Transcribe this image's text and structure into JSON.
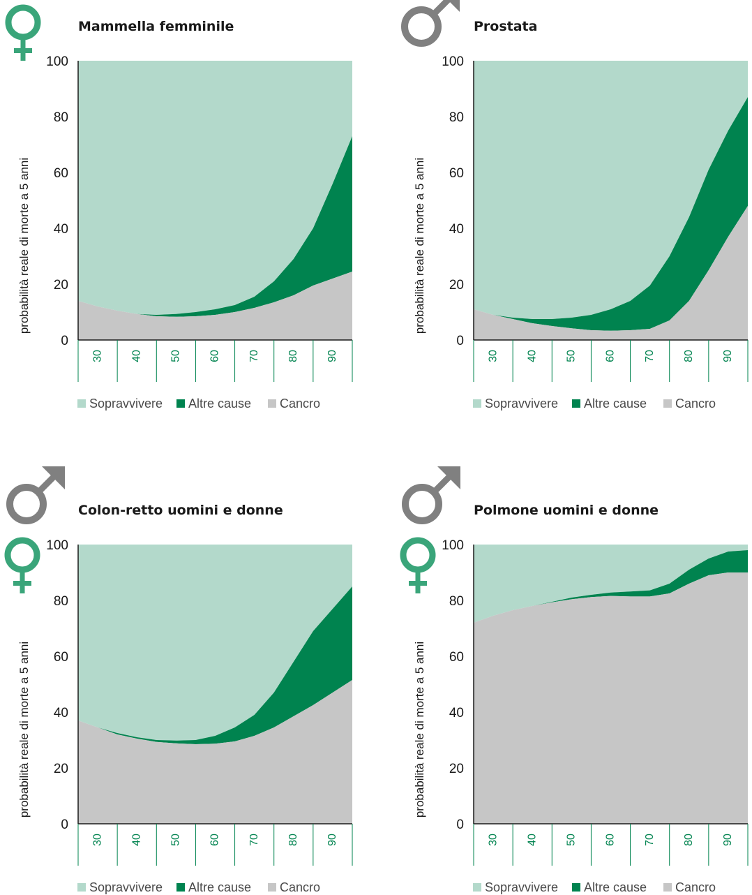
{
  "colors": {
    "survive": "#b3d9cb",
    "other": "#00834f",
    "cancer": "#c6c6c6",
    "female_symbol": "#3aa57a",
    "male_symbol": "#808080",
    "x_tick_text": "#00834f"
  },
  "chart_data": [
    {
      "type": "area",
      "title": "Mammella femminile",
      "symbols": [
        "female-icon"
      ],
      "ylabel": "probabilità  reale di morte a 5 anni",
      "x": [
        25,
        30,
        35,
        40,
        45,
        50,
        55,
        60,
        65,
        70,
        75,
        80,
        85,
        90,
        95
      ],
      "ylim": [
        0,
        100
      ],
      "xlim": [
        25,
        95
      ],
      "yticks": [
        0,
        20,
        40,
        60,
        80,
        100
      ],
      "xticks": [
        30,
        40,
        50,
        60,
        70,
        80,
        90
      ],
      "series": [
        {
          "name": "Cancro",
          "values": [
            14,
            12,
            10.5,
            9.3,
            8.5,
            8.3,
            8.5,
            9,
            10,
            11.5,
            13.5,
            16,
            19.5,
            22,
            24.5
          ]
        },
        {
          "name": "Altre cause",
          "values": [
            14,
            12,
            10.5,
            9.3,
            9,
            9.3,
            10,
            11,
            12.5,
            15.5,
            21,
            29,
            40,
            56,
            73
          ]
        },
        {
          "name": "Sopravvivere",
          "values": [
            100,
            100,
            100,
            100,
            100,
            100,
            100,
            100,
            100,
            100,
            100,
            100,
            100,
            100,
            100
          ]
        }
      ]
    },
    {
      "type": "area",
      "title": "Prostata",
      "symbols": [
        "male-icon"
      ],
      "ylabel": "probabilità  reale di morte a 5 anni",
      "x": [
        25,
        30,
        35,
        40,
        45,
        50,
        55,
        60,
        65,
        70,
        75,
        80,
        85,
        90,
        95
      ],
      "ylim": [
        0,
        100
      ],
      "xlim": [
        25,
        95
      ],
      "yticks": [
        0,
        20,
        40,
        60,
        80,
        100
      ],
      "xticks": [
        30,
        40,
        50,
        60,
        70,
        80,
        90
      ],
      "series": [
        {
          "name": "Cancro",
          "values": [
            11,
            9,
            7.5,
            6,
            5,
            4.2,
            3.5,
            3.3,
            3.5,
            4,
            7,
            14,
            25,
            37,
            48
          ]
        },
        {
          "name": "Altre cause",
          "values": [
            11,
            9,
            8,
            7.5,
            7.5,
            8,
            9,
            11,
            14,
            19.5,
            30,
            44,
            61,
            75,
            87
          ]
        },
        {
          "name": "Sopravvivere",
          "values": [
            100,
            100,
            100,
            100,
            100,
            100,
            100,
            100,
            100,
            100,
            100,
            100,
            100,
            100,
            100
          ]
        }
      ]
    },
    {
      "type": "area",
      "title": "Colon-retto uomini e donne",
      "symbols": [
        "male-icon",
        "female-icon"
      ],
      "ylabel": "probabilità  reale di morte a 5 anni",
      "x": [
        25,
        30,
        35,
        40,
        45,
        50,
        55,
        60,
        65,
        70,
        75,
        80,
        85,
        90,
        95
      ],
      "ylim": [
        0,
        100
      ],
      "xlim": [
        25,
        95
      ],
      "yticks": [
        0,
        20,
        40,
        60,
        80,
        100
      ],
      "xticks": [
        30,
        40,
        50,
        60,
        70,
        80,
        90
      ],
      "series": [
        {
          "name": "Cancro",
          "values": [
            37,
            34.5,
            32,
            30.5,
            29.3,
            28.8,
            28.5,
            28.7,
            29.5,
            31.5,
            34.5,
            38.5,
            42.5,
            47,
            51.5
          ]
        },
        {
          "name": "Altre cause",
          "values": [
            37,
            34.5,
            32.5,
            31,
            30,
            29.8,
            30,
            31.5,
            34.5,
            39,
            47,
            58,
            69,
            77,
            85
          ]
        },
        {
          "name": "Sopravvivere",
          "values": [
            100,
            100,
            100,
            100,
            100,
            100,
            100,
            100,
            100,
            100,
            100,
            100,
            100,
            100,
            100
          ]
        }
      ]
    },
    {
      "type": "area",
      "title": "Polmone uomini e donne",
      "symbols": [
        "male-icon",
        "female-icon"
      ],
      "ylabel": "probabilità  reale di morte a 5 anni",
      "x": [
        25,
        30,
        35,
        40,
        45,
        50,
        55,
        60,
        65,
        70,
        75,
        80,
        85,
        90,
        95
      ],
      "ylim": [
        0,
        100
      ],
      "xlim": [
        25,
        95
      ],
      "yticks": [
        0,
        20,
        40,
        60,
        80,
        100
      ],
      "xticks": [
        30,
        40,
        50,
        60,
        70,
        80,
        90
      ],
      "series": [
        {
          "name": "Cancro",
          "values": [
            72,
            74.5,
            76.5,
            78,
            79.3,
            80.4,
            81.2,
            81.6,
            81.4,
            81.4,
            82.5,
            86,
            89,
            90,
            90
          ]
        },
        {
          "name": "Altre cause",
          "values": [
            72,
            74.5,
            76.5,
            78,
            79.5,
            81,
            82,
            82.8,
            83.2,
            83.6,
            86,
            91,
            95,
            97.5,
            98
          ]
        },
        {
          "name": "Sopravvivere",
          "values": [
            100,
            100,
            100,
            100,
            100,
            100,
            100,
            100,
            100,
            100,
            100,
            100,
            100,
            100,
            100
          ]
        }
      ]
    }
  ]
}
